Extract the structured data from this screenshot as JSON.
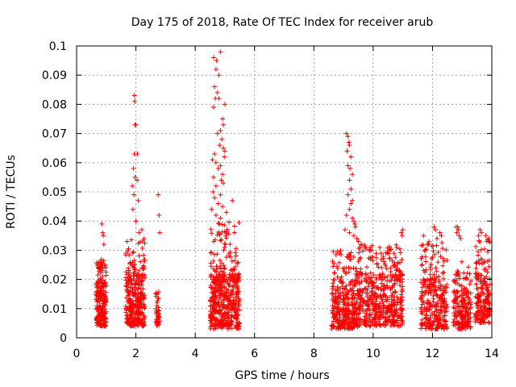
{
  "chart_data": {
    "type": "scatter",
    "title": "Day 175 of 2018, Rate Of TEC Index for receiver arub",
    "xlabel": "GPS time / hours",
    "ylabel": "ROTI / TECUs",
    "xlim": [
      0,
      14
    ],
    "ylim": [
      0,
      0.1
    ],
    "xticks": [
      0,
      2,
      4,
      6,
      8,
      10,
      12,
      14
    ],
    "yticks": [
      0,
      0.01,
      0.02,
      0.03,
      0.04,
      0.05,
      0.06,
      0.07,
      0.08,
      0.09,
      0.1
    ],
    "xtick_labels": [
      "0",
      "2",
      "4",
      "6",
      "8",
      "10",
      "12",
      "14"
    ],
    "ytick_labels": [
      "0",
      "0.01",
      "0.02",
      "0.03",
      "0.04",
      "0.05",
      "0.06",
      "0.07",
      "0.08",
      "0.09",
      "0.1"
    ],
    "grid": true,
    "marker": "+",
    "series_color": "#ff0000",
    "clusters": [
      {
        "x_range": [
          0.65,
          1.0
        ],
        "y_core": [
          0.004,
          0.02
        ],
        "y_max": 0.027,
        "n": 230
      },
      {
        "x_range": [
          1.65,
          2.3
        ],
        "y_core": [
          0.004,
          0.022
        ],
        "y_max": 0.034,
        "n": 320
      },
      {
        "x_range": [
          2.65,
          2.8
        ],
        "y_core": [
          0.004,
          0.013
        ],
        "y_max": 0.016,
        "n": 40
      },
      {
        "x_range": [
          4.5,
          5.5
        ],
        "y_core": [
          0.003,
          0.022
        ],
        "y_max": 0.04,
        "n": 480
      },
      {
        "x_range": [
          8.6,
          9.5
        ],
        "y_core": [
          0.003,
          0.02
        ],
        "y_max": 0.03,
        "n": 320
      },
      {
        "x_range": [
          9.5,
          11.0
        ],
        "y_core": [
          0.004,
          0.022
        ],
        "y_max": 0.032,
        "n": 470
      },
      {
        "x_range": [
          11.6,
          12.5
        ],
        "y_core": [
          0.003,
          0.02
        ],
        "y_max": 0.033,
        "n": 280
      },
      {
        "x_range": [
          12.7,
          13.3
        ],
        "y_core": [
          0.003,
          0.017
        ],
        "y_max": 0.028,
        "n": 190
      },
      {
        "x_range": [
          13.45,
          13.95
        ],
        "y_core": [
          0.005,
          0.022
        ],
        "y_max": 0.034,
        "n": 200
      }
    ],
    "outliers": [
      [
        0.85,
        0.039
      ],
      [
        0.88,
        0.036
      ],
      [
        0.9,
        0.035
      ],
      [
        0.92,
        0.032
      ],
      [
        1.95,
        0.083
      ],
      [
        1.96,
        0.081
      ],
      [
        1.97,
        0.073
      ],
      [
        1.99,
        0.073
      ],
      [
        1.95,
        0.063
      ],
      [
        2.05,
        0.063
      ],
      [
        1.92,
        0.058
      ],
      [
        1.97,
        0.055
      ],
      [
        2.04,
        0.054
      ],
      [
        1.88,
        0.052
      ],
      [
        1.93,
        0.049
      ],
      [
        2.08,
        0.047
      ],
      [
        1.9,
        0.044
      ],
      [
        2.0,
        0.04
      ],
      [
        2.2,
        0.037
      ],
      [
        2.1,
        0.036
      ],
      [
        2.75,
        0.049
      ],
      [
        2.78,
        0.042
      ],
      [
        2.8,
        0.036
      ],
      [
        4.85,
        0.098
      ],
      [
        4.62,
        0.096
      ],
      [
        4.72,
        0.095
      ],
      [
        4.7,
        0.092
      ],
      [
        4.8,
        0.09
      ],
      [
        4.65,
        0.086
      ],
      [
        4.75,
        0.084
      ],
      [
        4.68,
        0.082
      ],
      [
        4.8,
        0.082
      ],
      [
        5.0,
        0.08
      ],
      [
        4.62,
        0.079
      ],
      [
        4.92,
        0.075
      ],
      [
        4.95,
        0.073
      ],
      [
        4.85,
        0.071
      ],
      [
        4.75,
        0.07
      ],
      [
        4.9,
        0.068
      ],
      [
        4.82,
        0.066
      ],
      [
        4.95,
        0.065
      ],
      [
        5.0,
        0.064
      ],
      [
        4.65,
        0.063
      ],
      [
        4.98,
        0.062
      ],
      [
        4.58,
        0.061
      ],
      [
        4.7,
        0.06
      ],
      [
        4.85,
        0.059
      ],
      [
        4.78,
        0.058
      ],
      [
        4.92,
        0.056
      ],
      [
        4.62,
        0.055
      ],
      [
        4.88,
        0.054
      ],
      [
        4.95,
        0.053
      ],
      [
        4.7,
        0.052
      ],
      [
        4.6,
        0.05
      ],
      [
        4.85,
        0.049
      ],
      [
        4.65,
        0.048
      ],
      [
        5.25,
        0.047
      ],
      [
        4.78,
        0.046
      ],
      [
        4.92,
        0.045
      ],
      [
        4.55,
        0.044
      ],
      [
        5.05,
        0.043
      ],
      [
        4.7,
        0.042
      ],
      [
        4.85,
        0.041
      ],
      [
        9.1,
        0.07
      ],
      [
        9.15,
        0.069
      ],
      [
        9.18,
        0.067
      ],
      [
        9.2,
        0.066
      ],
      [
        9.12,
        0.064
      ],
      [
        9.25,
        0.062
      ],
      [
        9.15,
        0.059
      ],
      [
        9.22,
        0.058
      ],
      [
        9.3,
        0.056
      ],
      [
        9.2,
        0.054
      ],
      [
        9.25,
        0.051
      ],
      [
        9.15,
        0.049
      ],
      [
        9.3,
        0.047
      ],
      [
        9.25,
        0.046
      ],
      [
        9.2,
        0.044
      ],
      [
        9.1,
        0.042
      ],
      [
        9.3,
        0.041
      ],
      [
        9.35,
        0.04
      ],
      [
        9.38,
        0.039
      ],
      [
        9.4,
        0.038
      ],
      [
        9.05,
        0.037
      ],
      [
        9.2,
        0.036
      ],
      [
        9.35,
        0.035
      ],
      [
        9.45,
        0.034
      ],
      [
        9.5,
        0.033
      ],
      [
        9.6,
        0.032
      ],
      [
        9.75,
        0.031
      ],
      [
        9.9,
        0.031
      ],
      [
        11.0,
        0.037
      ],
      [
        10.95,
        0.036
      ],
      [
        10.98,
        0.035
      ],
      [
        11.7,
        0.035
      ],
      [
        12.05,
        0.038
      ],
      [
        12.1,
        0.037
      ],
      [
        12.25,
        0.036
      ],
      [
        12.3,
        0.035
      ],
      [
        12.15,
        0.034
      ],
      [
        12.8,
        0.038
      ],
      [
        12.85,
        0.038
      ],
      [
        12.88,
        0.037
      ],
      [
        12.82,
        0.036
      ],
      [
        12.9,
        0.035
      ],
      [
        12.95,
        0.034
      ],
      [
        13.6,
        0.037
      ],
      [
        13.65,
        0.036
      ],
      [
        13.55,
        0.035
      ],
      [
        13.8,
        0.035
      ],
      [
        13.9,
        0.034
      ]
    ]
  }
}
